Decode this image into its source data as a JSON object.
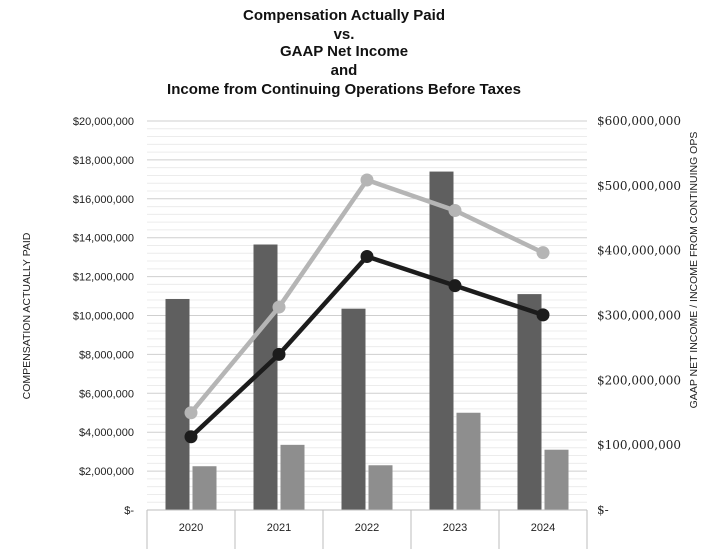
{
  "chart_data": {
    "type": "bar+line",
    "title_lines": [
      "Compensation Actually Paid",
      "vs.",
      "GAAP Net Income",
      "and",
      "Income from Continuing Operations Before Taxes"
    ],
    "ylabel": "COMPENSATION ACTUALLY PAID",
    "y2label": "GAAP NET INCOME / INCOME FROM CONTINUING OPS",
    "categories": [
      "2020",
      "2021",
      "2022",
      "2023",
      "2024"
    ],
    "ylim": [
      0,
      20000000
    ],
    "y2lim": [
      0,
      600000000
    ],
    "y_ticks": [
      "$-",
      "$2,000,000",
      "$4,000,000",
      "$6,000,000",
      "$8,000,000",
      "$10,000,000",
      "$12,000,000",
      "$14,000,000",
      "$16,000,000",
      "$18,000,000",
      "$20,000,000"
    ],
    "y2_ticks": [
      "$-",
      "$100,000,000",
      "$200,000,000",
      "$300,000,000",
      "$400,000,000",
      "$500,000,000",
      "$600,000,000"
    ],
    "bar_series": [
      {
        "values": [
          10850000,
          13650000,
          10350000,
          17400000,
          11100000
        ],
        "color": "#5f5f5f"
      },
      {
        "values": [
          2250000,
          3350000,
          2300000,
          5000000,
          3100000
        ],
        "color": "#8e8e8e"
      }
    ],
    "line_series": [
      {
        "values": [
          150000000,
          313000000,
          509000000,
          462000000,
          397000000
        ],
        "color": "#b5b5b5"
      },
      {
        "values": [
          113000000,
          240000000,
          391000000,
          346000000,
          301000000
        ],
        "color": "#1c1c1c"
      }
    ],
    "grid": true
  }
}
